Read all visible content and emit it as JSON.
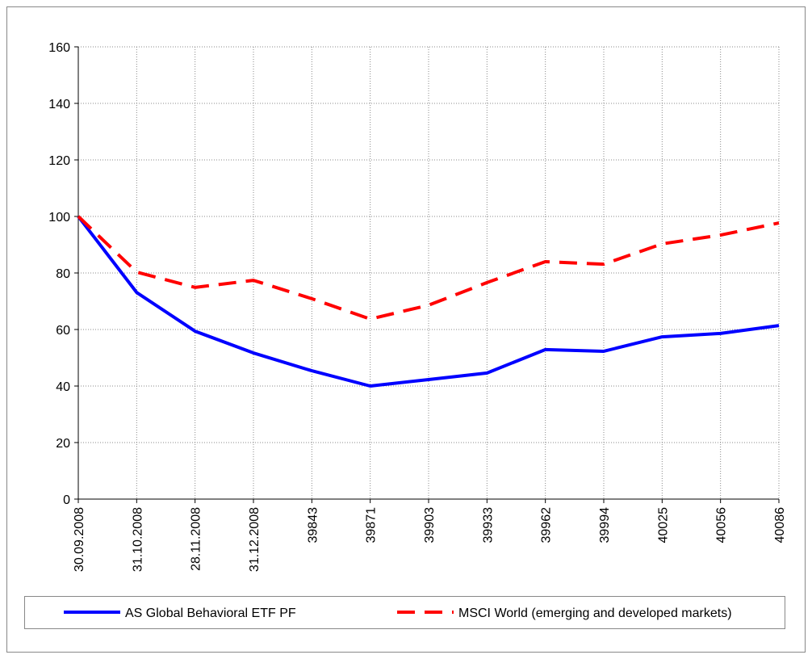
{
  "chart_data": {
    "type": "line",
    "categories": [
      "30.09.2008",
      "31.10.2008",
      "28.11.2008",
      "31.12.2008",
      "39843",
      "39871",
      "39903",
      "39933",
      "39962",
      "39994",
      "40025",
      "40056",
      "40086"
    ],
    "series": [
      {
        "name": "AS Global Behavioral ETF PF",
        "color": "#0000ff",
        "dash": false,
        "values": [
          100,
          73.1,
          59.4,
          51.7,
          45.4,
          40,
          42.3,
          44.6,
          52.9,
          52.3,
          57.4,
          58.6,
          61.4
        ]
      },
      {
        "name": "MSCI World (emerging and developed markets)",
        "color": "#ff0000",
        "dash": true,
        "values": [
          100,
          80.3,
          74.9,
          77.4,
          70.9,
          63.7,
          68.6,
          76.6,
          84,
          83.1,
          90.3,
          93.4,
          97.7
        ]
      }
    ],
    "ylim": [
      0,
      160
    ],
    "yticks": [
      0,
      20,
      40,
      60,
      80,
      100,
      120,
      140,
      160
    ],
    "grid": true,
    "legend": "bottom"
  }
}
